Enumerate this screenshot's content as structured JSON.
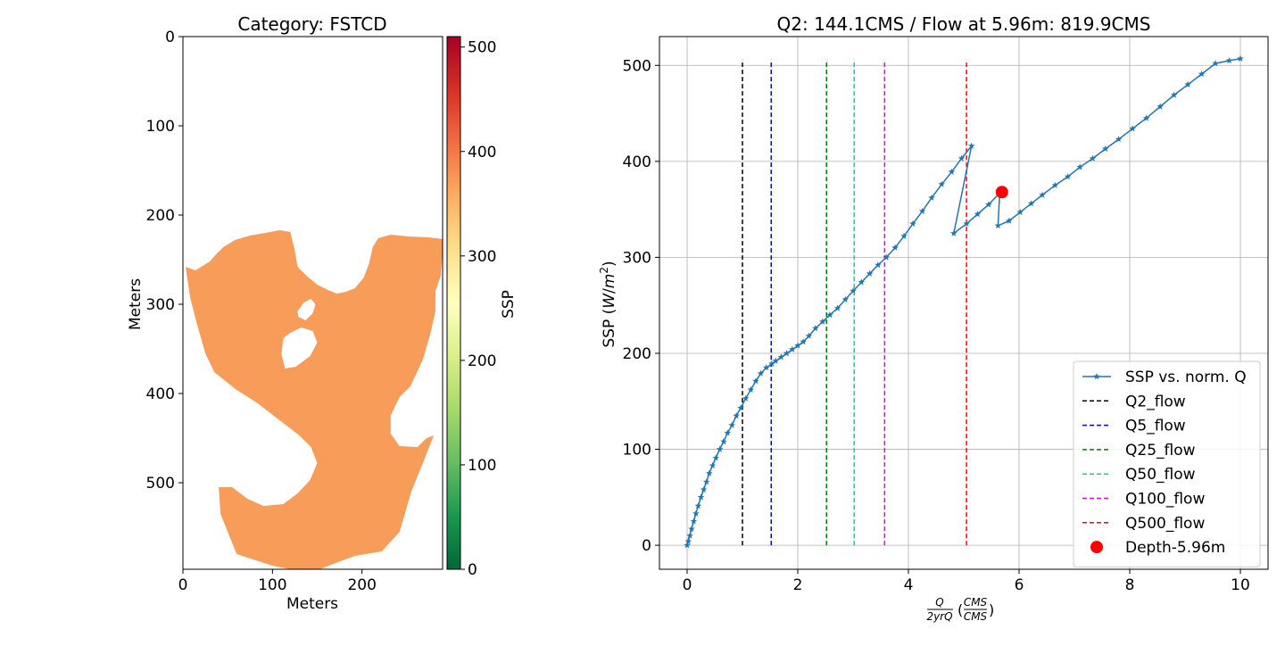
{
  "chart_data": [
    {
      "type": "heatmap",
      "title": "Category: FSTCD",
      "xlabel": "Meters",
      "ylabel": "Meters",
      "xlim": [
        0,
        290
      ],
      "ylim": [
        0,
        597
      ],
      "xticks": [
        0,
        100,
        200
      ],
      "yticks": [
        0,
        100,
        200,
        300,
        400,
        500
      ],
      "colorbar": {
        "label": "SSP",
        "range": [
          0,
          510
        ],
        "ticks": [
          0,
          100,
          200,
          300,
          400,
          500
        ],
        "colormap": "RdYlGn_r",
        "stops": [
          "#006837",
          "#1a9850",
          "#66bd63",
          "#a6d96a",
          "#d9ef8b",
          "#ffffbf",
          "#fee08b",
          "#fdae61",
          "#f46d43",
          "#d73027",
          "#a50026"
        ]
      },
      "region": {
        "fill_color": "#f89d59",
        "approx_ssp": 368,
        "outline": [
          [
            3,
            258
          ],
          [
            14,
            262
          ],
          [
            22,
            257
          ],
          [
            30,
            252
          ],
          [
            37,
            244
          ],
          [
            45,
            236
          ],
          [
            58,
            228
          ],
          [
            75,
            223
          ],
          [
            92,
            220
          ],
          [
            108,
            217
          ],
          [
            120,
            219
          ],
          [
            125,
            240
          ],
          [
            128,
            258
          ],
          [
            138,
            268
          ],
          [
            150,
            278
          ],
          [
            162,
            284
          ],
          [
            172,
            288
          ],
          [
            182,
            286
          ],
          [
            192,
            282
          ],
          [
            202,
            270
          ],
          [
            208,
            254
          ],
          [
            212,
            236
          ],
          [
            218,
            226
          ],
          [
            232,
            222
          ],
          [
            252,
            224
          ],
          [
            275,
            225
          ],
          [
            291,
            227
          ],
          [
            288,
            268
          ],
          [
            282,
            285
          ],
          [
            282,
            308
          ],
          [
            276,
            334
          ],
          [
            268,
            362
          ],
          [
            254,
            392
          ],
          [
            242,
            404
          ],
          [
            238,
            412
          ],
          [
            232,
            425
          ],
          [
            232,
            445
          ],
          [
            242,
            459
          ],
          [
            262,
            460
          ],
          [
            272,
            450
          ],
          [
            280,
            447
          ],
          [
            268,
            478
          ],
          [
            255,
            510
          ],
          [
            242,
            555
          ],
          [
            222,
            577
          ],
          [
            192,
            582
          ],
          [
            165,
            592
          ],
          [
            146,
            600
          ],
          [
            120,
            597
          ],
          [
            100,
            593
          ],
          [
            60,
            580
          ],
          [
            42,
            535
          ],
          [
            40,
            505
          ],
          [
            55,
            505
          ],
          [
            72,
            518
          ],
          [
            90,
            526
          ],
          [
            112,
            524
          ],
          [
            128,
            512
          ],
          [
            142,
            497
          ],
          [
            150,
            478
          ],
          [
            143,
            460
          ],
          [
            130,
            447
          ],
          [
            108,
            430
          ],
          [
            82,
            410
          ],
          [
            60,
            396
          ],
          [
            35,
            376
          ],
          [
            25,
            355
          ],
          [
            15,
            320
          ],
          [
            8,
            292
          ]
        ],
        "holes": [
          [
            [
              128,
              308
            ],
            [
              135,
              298
            ],
            [
              143,
              294
            ],
            [
              148,
              300
            ],
            [
              145,
              310
            ],
            [
              137,
              318
            ],
            [
              129,
              314
            ]
          ],
          [
            [
              112,
              338
            ],
            [
              120,
              332
            ],
            [
              132,
              326
            ],
            [
              145,
              330
            ],
            [
              150,
              343
            ],
            [
              142,
              358
            ],
            [
              126,
              370
            ],
            [
              114,
              372
            ],
            [
              110,
              356
            ]
          ]
        ]
      }
    },
    {
      "type": "line",
      "title": "Q2: 144.1CMS / Flow at 5.96m: 819.9CMS",
      "xlabel": "Q / 2yrQ (CMS / CMS)",
      "ylabel": "SSP (W/m²)",
      "xlim": [
        -0.5,
        10.5
      ],
      "ylim": [
        -25,
        530
      ],
      "xticks": [
        0,
        2,
        4,
        6,
        8,
        10
      ],
      "yticks": [
        0,
        100,
        200,
        300,
        400,
        500
      ],
      "grid": true,
      "legend_position": "lower-right",
      "series": [
        {
          "name": "SSP vs. norm. Q",
          "color": "#1f77b4",
          "marker": "star",
          "x": [
            0,
            0.02,
            0.05,
            0.08,
            0.12,
            0.16,
            0.2,
            0.25,
            0.3,
            0.35,
            0.4,
            0.46,
            0.52,
            0.59,
            0.66,
            0.73,
            0.81,
            0.89,
            0.97,
            1.06,
            1.15,
            1.24,
            1.33,
            1.43,
            1.53,
            1.6,
            1.7,
            1.8,
            1.9,
            2.0,
            2.1,
            2.2,
            2.32,
            2.45,
            2.58,
            2.72,
            2.86,
            3.0,
            3.15,
            3.3,
            3.45,
            3.6,
            3.76,
            3.92,
            4.08,
            4.25,
            4.42,
            4.6,
            4.78,
            4.96,
            5.14,
            4.82,
            5.05,
            5.25,
            5.45,
            5.65,
            5.62,
            5.82,
            6.02,
            6.22,
            6.42,
            6.65,
            6.88,
            7.1,
            7.33,
            7.56,
            7.8,
            8.05,
            8.3,
            8.55,
            8.8,
            9.05,
            9.3,
            9.55,
            9.8,
            10.0
          ],
          "y": [
            0,
            4,
            10,
            17,
            25,
            33,
            41,
            50,
            58,
            66,
            75,
            83,
            91,
            100,
            108,
            117,
            125,
            135,
            143,
            153,
            162,
            171,
            179,
            185,
            189,
            192,
            196,
            200,
            204,
            208,
            212,
            218,
            226,
            233,
            240,
            247,
            256,
            265,
            274,
            283,
            292,
            300,
            310,
            322,
            335,
            348,
            362,
            376,
            389,
            403,
            416,
            325,
            335,
            345,
            355,
            367,
            333,
            338,
            347,
            356,
            365,
            375,
            384,
            394,
            403,
            413,
            423,
            434,
            445,
            457,
            469,
            480,
            491,
            502,
            505,
            507
          ]
        },
        {
          "name": "Q2_flow",
          "color": "#000000",
          "style": "dashed",
          "x": [
            1.0,
            1.0
          ],
          "y": [
            0,
            506
          ]
        },
        {
          "name": "Q5_flow",
          "color": "#0000ff",
          "style": "dashed",
          "x": [
            1.52,
            1.52
          ],
          "y": [
            0,
            506
          ]
        },
        {
          "name": "Q25_flow",
          "color": "#008000",
          "style": "dashed",
          "x": [
            2.52,
            2.52
          ],
          "y": [
            0,
            506
          ]
        },
        {
          "name": "Q50_flow",
          "color": "#00d0c0",
          "style": "dashed",
          "x": [
            3.02,
            3.02
          ],
          "y": [
            0,
            506
          ]
        },
        {
          "name": "Q100_flow",
          "color": "#e000e0",
          "style": "dashed",
          "x": [
            3.57,
            3.57
          ],
          "y": [
            0,
            506
          ]
        },
        {
          "name": "Q500_flow",
          "color": "#ff0000",
          "style": "dashed",
          "x": [
            5.05,
            5.05
          ],
          "y": [
            0,
            506
          ]
        },
        {
          "name": "Depth-5.96m",
          "color": "#ff0000",
          "marker": "circle",
          "x": [
            5.69
          ],
          "y": [
            368
          ]
        }
      ]
    }
  ]
}
